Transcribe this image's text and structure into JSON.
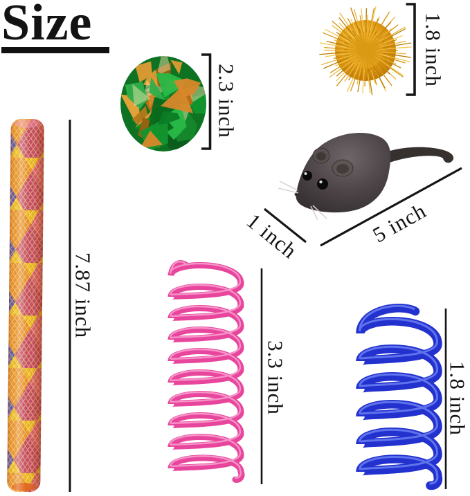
{
  "title": {
    "text": "Size"
  },
  "items": {
    "crinkle_ball": {
      "size_label": "2.3 inch"
    },
    "gold_pompom": {
      "size_label": "1.8 inch"
    },
    "toy_mouse": {
      "width_label": "1 inch",
      "length_label": "5 inch"
    },
    "mesh_tube": {
      "size_label": "7.87 inch"
    },
    "pink_spring": {
      "size_label": "3.3 inch"
    },
    "blue_spring": {
      "size_label": "1.8 inch"
    }
  },
  "colors": {
    "label_text": "#131313",
    "measure_line": "#151515",
    "pompom_gold": "#e2a11c",
    "crinkle_green": "#12952e",
    "crinkle_orange": "#d8882a",
    "mouse_gray": "#4b4345",
    "tube_yellow": "#f3bd14",
    "tube_orange": "#ee8b1f",
    "tube_pink": "#d8447c",
    "tube_blue": "#3d3fc2",
    "spring_pink": "#e8459c",
    "spring_blue": "#2331cf"
  }
}
